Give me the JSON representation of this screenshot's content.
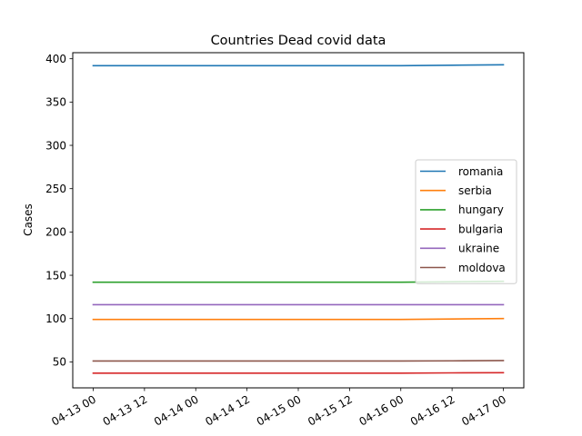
{
  "chart_data": {
    "type": "line",
    "title": "Countries Dead covid data",
    "xlabel": "",
    "ylabel": "Cases",
    "x": [
      "04-13 00",
      "04-13 12",
      "04-14 00",
      "04-14 12",
      "04-15 00",
      "04-15 12",
      "04-16 00",
      "04-16 12",
      "04-17 00"
    ],
    "x_ticks": [
      "04-13 00",
      "04-13 12",
      "04-14 00",
      "04-14 12",
      "04-15 00",
      "04-15 12",
      "04-16 00",
      "04-16 12",
      "04-17 00"
    ],
    "y_ticks": [
      50,
      100,
      150,
      200,
      250,
      300,
      350,
      400
    ],
    "ylim": [
      20,
      407
    ],
    "grid": false,
    "legend_position": "center-right",
    "series": [
      {
        "name": "romania",
        "color": "#1f77b4",
        "values": [
          392,
          392,
          392,
          392,
          392,
          392,
          392,
          392.5,
          393
        ]
      },
      {
        "name": "serbia",
        "color": "#ff7f0e",
        "values": [
          99,
          99,
          99,
          99,
          99,
          99,
          99,
          99.5,
          100
        ]
      },
      {
        "name": "hungary",
        "color": "#2ca02c",
        "values": [
          142,
          142,
          142,
          142,
          142,
          142,
          142,
          142.5,
          143
        ]
      },
      {
        "name": "bulgaria",
        "color": "#d62728",
        "values": [
          37,
          37,
          37,
          37,
          37,
          37,
          37,
          37.3,
          37.5
        ]
      },
      {
        "name": "ukraine",
        "color": "#9467bd",
        "values": [
          116,
          116,
          116,
          116,
          116,
          116,
          116,
          116,
          116
        ]
      },
      {
        "name": "moldova",
        "color": "#8c564b",
        "values": [
          51,
          51,
          51,
          51,
          51,
          51,
          51,
          51.2,
          51.5
        ]
      }
    ]
  }
}
